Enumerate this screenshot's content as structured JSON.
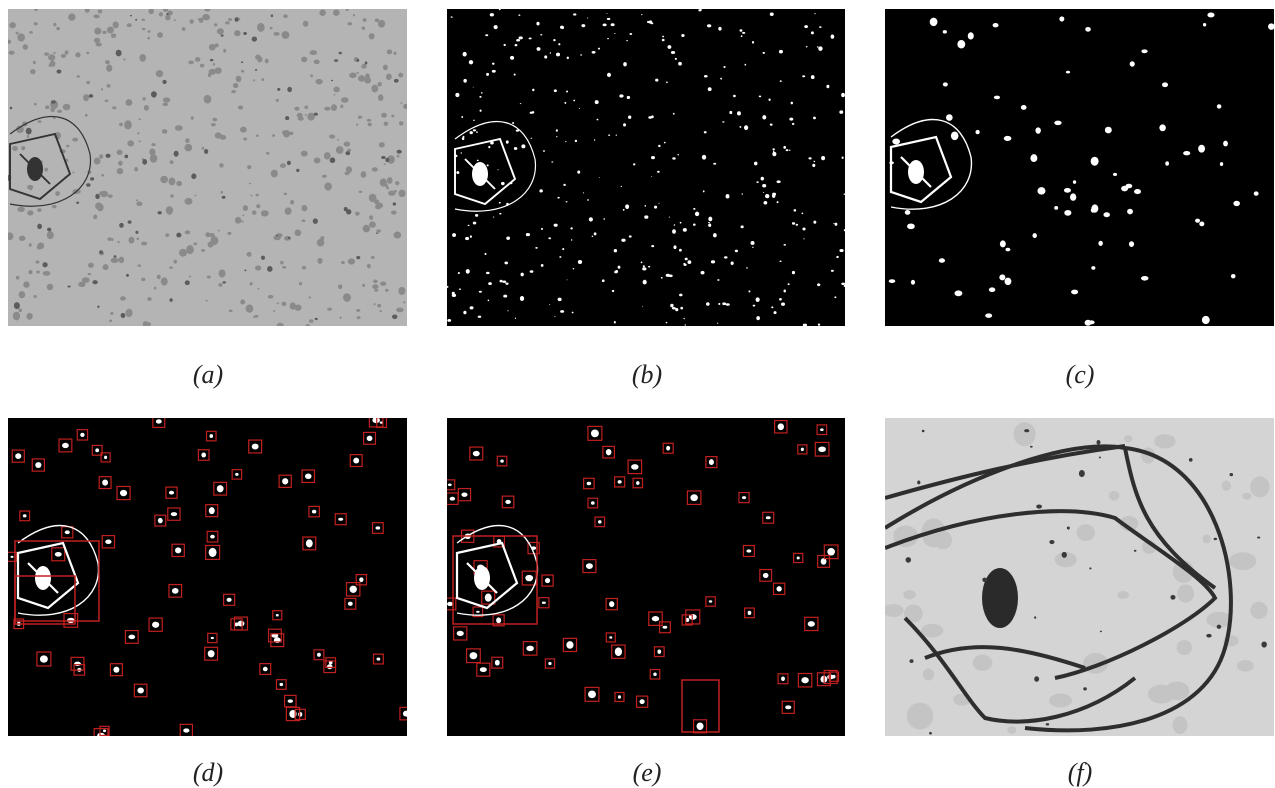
{
  "figure": {
    "captions": [
      "(a)",
      "(b)",
      "(c)",
      "(d)",
      "(e)",
      "(f)"
    ]
  }
}
